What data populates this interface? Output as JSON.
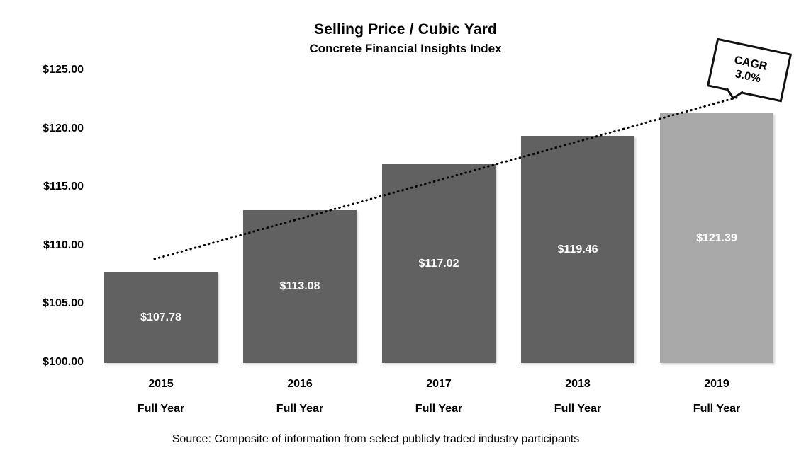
{
  "page": {
    "background": "#ffffff"
  },
  "chart_data": {
    "type": "bar",
    "title": "Selling Price / Cubic Yard",
    "subtitle": "Concrete Financial Insights Index",
    "categories": [
      "2015",
      "2016",
      "2017",
      "2018",
      "2019"
    ],
    "category_sublabels": [
      "Full Year",
      "Full Year",
      "Full Year",
      "Full Year",
      "Full Year"
    ],
    "values": [
      107.78,
      113.08,
      117.02,
      119.46,
      121.39
    ],
    "bar_labels": [
      "$107.78",
      "$113.08",
      "$117.02",
      "$119.46",
      "$121.39"
    ],
    "bar_colors": [
      "#616161",
      "#616161",
      "#616161",
      "#616161",
      "#a8a8a8"
    ],
    "bar_label_color": "#ffffff",
    "ylim": [
      100,
      125
    ],
    "ytick_labels": [
      "$125.00",
      "$120.00",
      "$115.00",
      "$110.00",
      "$105.00",
      "$100.00"
    ],
    "grid": "off",
    "legend": "none",
    "trendline": {
      "style": "dotted",
      "color": "#000000"
    },
    "callout": {
      "line1": "CAGR",
      "line2": "3.0%"
    },
    "source": "Source: Composite of information from select publicly traded industry participants"
  }
}
